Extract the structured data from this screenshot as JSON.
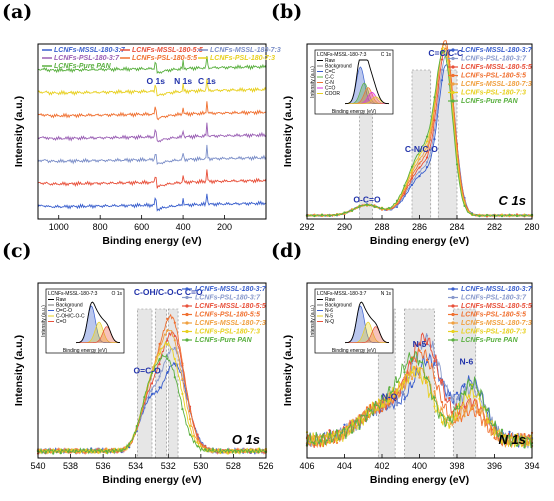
{
  "colors": {
    "axis": "#000000",
    "shade": "#d6d6d6",
    "peak_text": "#2233aa",
    "grid": "#bbbbbb"
  },
  "chart_data": [
    {
      "id": "a",
      "type": "line",
      "panel_label": "(a)",
      "xlabel": "Binding energy (eV)",
      "ylabel": "Intensity (a.u.)",
      "xlim": [
        1100,
        0
      ],
      "x_ticks": [
        1000,
        800,
        600,
        400,
        200
      ],
      "legend_position": "top",
      "legend": [
        "LCNFs-MSSL-180-3:7",
        "LCNFs-MSSL-180-5:5",
        "LCNFs-MSSL-180-7:3",
        "LCNFs-PSL-180-3:7",
        "LCNFs-PSL-180-5:5",
        "LCNFs-PSL-180-7:3",
        "LCNFs-Pure PAN"
      ],
      "series_colors": [
        "#3a5fcd",
        "#e8503a",
        "#7b8ec8",
        "#9a5fb4",
        "#f07030",
        "#e8d020",
        "#5ab040"
      ],
      "offsets": [
        0.07,
        0.2,
        0.33,
        0.46,
        0.59,
        0.72,
        0.85
      ],
      "peaks": [
        {
          "label": "O 1s",
          "x": 532
        },
        {
          "label": "N 1s",
          "x": 400
        },
        {
          "label": "C 1s",
          "x": 285
        }
      ]
    },
    {
      "id": "b",
      "type": "line",
      "panel_label": "(b)",
      "xlabel": "Binding energy (eV)",
      "ylabel": "Intensity (a.u.)",
      "xlim": [
        292,
        280
      ],
      "x_ticks": [
        292,
        290,
        288,
        286,
        284,
        282,
        280
      ],
      "core_level": "C 1s",
      "legend_position": "top-right",
      "legend": [
        "LCNFs-MSSL-180-3:7",
        "LCNFs-PSL-180-3:7",
        "LCNFs-MSSL-180-5:5",
        "LCNFs-PSL-180-5:5",
        "LCNFs-MSSL-180-7:3",
        "LCNFs-PSL-180-7:3",
        "LCNFs-Pure PAN"
      ],
      "series_colors": [
        "#3a5fcd",
        "#8899cc",
        "#e8503a",
        "#f07030",
        "#f0a040",
        "#e8d020",
        "#5ab040"
      ],
      "peaks": [
        {
          "label": "C=C/C-C",
          "x": 284.6,
          "height": 0.95
        },
        {
          "label": "C-N/C-O",
          "x": 285.9,
          "height": 0.35
        },
        {
          "label": "O-C=O",
          "x": 288.8,
          "height": 0.06
        }
      ],
      "shaded_bands": [
        [
          284.0,
          285.0
        ],
        [
          285.4,
          286.4
        ],
        [
          288.5,
          289.2
        ]
      ],
      "inset": {
        "title": "LCNFs-MSSL-180-7:3",
        "corner": "C 1s",
        "xlabel": "Binding energy (eV)",
        "ylabel": "Intensity (a.u.)",
        "legend": [
          "Raw",
          "Background",
          "C=C",
          "C-C",
          "C-N",
          "C=O",
          "COOR"
        ],
        "colors": [
          "#000000",
          "#777777",
          "#3a5fcd",
          "#5ab040",
          "#f07030",
          "#e030e0",
          "#e8d020"
        ]
      }
    },
    {
      "id": "c",
      "type": "line",
      "panel_label": "(c)",
      "xlabel": "Binding energy (eV)",
      "ylabel": "Intensity (a.u.)",
      "xlim": [
        540,
        526
      ],
      "x_ticks": [
        540,
        538,
        536,
        534,
        532,
        530,
        528,
        526
      ],
      "core_level": "O 1s",
      "legend_position": "top-right",
      "legend": [
        "LCNFs-MSSL-180-3:7",
        "LCNFs-PSL-180-3:7",
        "LCNFs-MSSL-180-5:5",
        "LCNFs-PSL-180-5:5",
        "LCNFs-MSSL-180-7:3",
        "LCNFs-PSL-180-7:3",
        "LCNFs-Pure PAN"
      ],
      "series_colors": [
        "#3a5fcd",
        "#8899cc",
        "#e8503a",
        "#f07030",
        "#f0a040",
        "#e8d020",
        "#5ab040"
      ],
      "peaks": [
        {
          "label": "C-OH/C-O-C C=O",
          "x": 532.0,
          "height": 0.9
        },
        {
          "label": "O=C-O",
          "x": 533.3,
          "height": 0.45
        }
      ],
      "shaded_bands": [
        [
          533.0,
          533.9
        ],
        [
          532.1,
          532.8
        ],
        [
          531.4,
          532.0
        ]
      ],
      "inset": {
        "title": "LCNFs-MSSL-180-7:3",
        "corner": "O 1s",
        "xlabel": "Binding energy (eV)",
        "ylabel": "Intensity (a.u.)",
        "legend": [
          "Raw",
          "Background",
          "O=C-O",
          "C-OH/C-O-C",
          "C=O"
        ],
        "colors": [
          "#000000",
          "#777777",
          "#3a5fcd",
          "#e8d020",
          "#e8503a"
        ]
      }
    },
    {
      "id": "d",
      "type": "line",
      "panel_label": "(d)",
      "xlabel": "Binding energy (eV)",
      "ylabel": "Intensity (a.u.)",
      "xlim": [
        406,
        394
      ],
      "x_ticks": [
        406,
        404,
        402,
        400,
        398,
        396,
        394
      ],
      "core_level": "N 1s",
      "legend_position": "top-right",
      "legend": [
        "LCNFs-MSSL-180-3:7",
        "LCNFs-PSL-180-3:7",
        "LCNFs-MSSL-180-5:5",
        "LCNFs-PSL-180-5:5",
        "LCNFs-MSSL-180-7:3",
        "LCNFs-PSL-180-7:3",
        "LCNFs-Pure PAN"
      ],
      "series_colors": [
        "#3a5fcd",
        "#8899cc",
        "#e8503a",
        "#f07030",
        "#f0a040",
        "#e8d020",
        "#5ab040"
      ],
      "peaks": [
        {
          "label": "N-5",
          "x": 400.0,
          "height": 0.6
        },
        {
          "label": "N-6",
          "x": 397.5,
          "height": 0.5
        },
        {
          "label": "N-Q",
          "x": 401.6,
          "height": 0.3
        }
      ],
      "shaded_bands": [
        [
          399.2,
          400.8
        ],
        [
          397.0,
          398.2
        ],
        [
          401.3,
          402.2
        ]
      ],
      "inset": {
        "title": "LCNFs-MSSL-180-3:7",
        "corner": "N 1s",
        "xlabel": "Binding energy (eV)",
        "ylabel": "Intensity (a.u.)",
        "legend": [
          "Raw",
          "Background",
          "N-6",
          "N-5",
          "N-Q"
        ],
        "colors": [
          "#000000",
          "#777777",
          "#3a5fcd",
          "#e8d020",
          "#e8503a"
        ]
      }
    }
  ]
}
